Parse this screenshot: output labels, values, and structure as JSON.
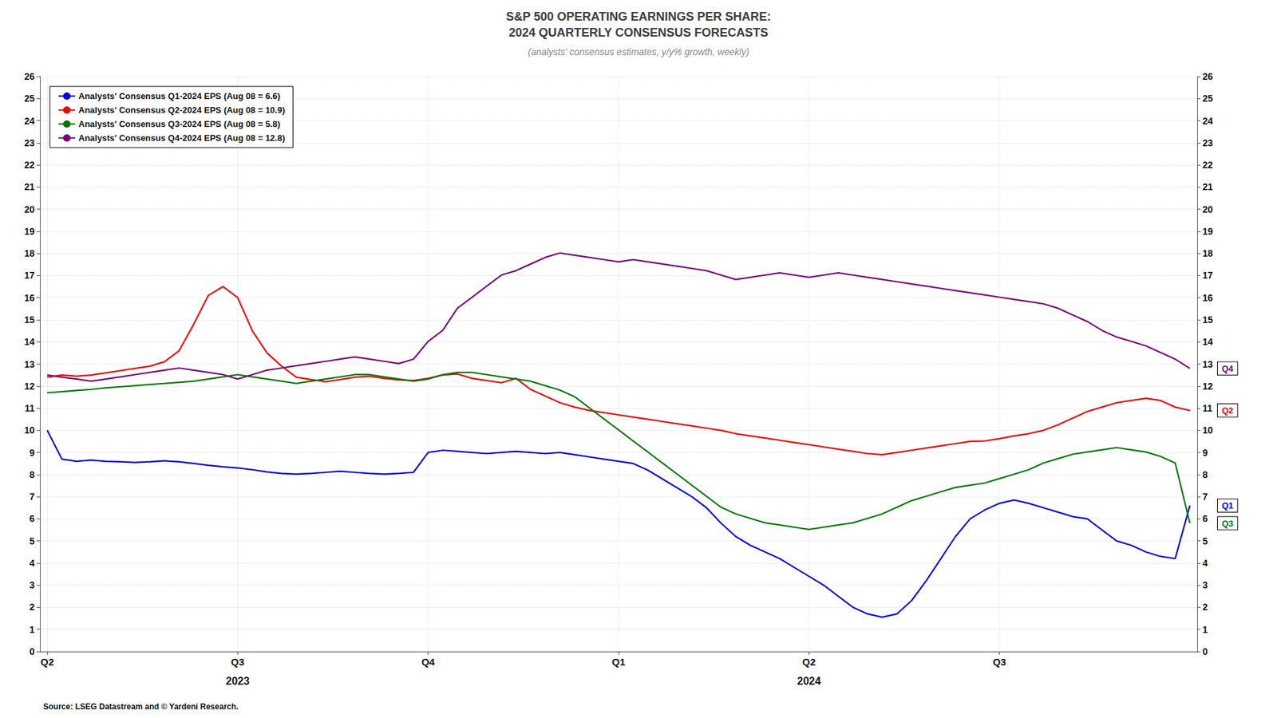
{
  "chart_data": {
    "type": "line",
    "title": "S&P 500 OPERATING EARNINGS PER SHARE:\n2024 QUARTERLY CONSENSUS FORECASTS",
    "subtitle": "(analysts' consensus estimates, y/y% growth, weekly)",
    "source": "Source: LSEG Datastream and © Yardeni Research.",
    "categories": [
      "Q2",
      null,
      null,
      null,
      null,
      null,
      null,
      null,
      null,
      null,
      null,
      null,
      null,
      "Q3",
      null,
      null,
      null,
      null,
      null,
      null,
      null,
      null,
      null,
      null,
      null,
      null,
      "Q4",
      null,
      null,
      null,
      null,
      null,
      null,
      null,
      null,
      null,
      null,
      null,
      null,
      "Q1",
      null,
      null,
      null,
      null,
      null,
      null,
      null,
      null,
      null,
      null,
      null,
      null,
      "Q2",
      null,
      null,
      null,
      null,
      null,
      null,
      null,
      null,
      null,
      null,
      null,
      null,
      "Q3",
      null,
      null,
      null,
      null,
      null,
      null,
      null,
      null,
      null,
      null,
      null,
      null,
      null
    ],
    "annotations": [
      {
        "text": "2023",
        "x": 13
      },
      {
        "text": "2024",
        "x": 52
      }
    ],
    "ylim": [
      0,
      26
    ],
    "yticks": [
      0,
      1,
      2,
      3,
      4,
      5,
      6,
      7,
      8,
      9,
      10,
      11,
      12,
      13,
      14,
      15,
      16,
      17,
      18,
      19,
      20,
      21,
      22,
      23,
      24,
      25,
      26
    ],
    "grid": true,
    "legend": "upper left",
    "series": [
      {
        "name": "Analysts' Consensus Q1-2024 EPS (Aug 08 = 6.6)",
        "color": "#0000dd",
        "end_label": "Q1",
        "values": [
          10.0,
          8.7,
          8.6,
          8.65,
          8.6,
          8.58,
          8.55,
          8.58,
          8.62,
          8.58,
          8.5,
          8.42,
          8.35,
          8.3,
          8.22,
          8.12,
          8.05,
          8.02,
          8.05,
          8.1,
          8.15,
          8.1,
          8.05,
          8.02,
          8.05,
          8.1,
          9.0,
          9.1,
          9.05,
          9.0,
          8.95,
          9.0,
          9.05,
          9.0,
          8.95,
          9.0,
          8.9,
          8.8,
          8.7,
          8.6,
          8.5,
          8.2,
          7.8,
          7.4,
          7.0,
          6.5,
          5.8,
          5.2,
          4.8,
          4.5,
          4.2,
          3.8,
          3.4,
          3.0,
          2.5,
          2.0,
          1.7,
          1.55,
          1.7,
          2.3,
          3.2,
          4.2,
          5.2,
          6.0,
          6.4,
          6.7,
          6.85,
          6.7,
          6.5,
          6.3,
          6.1,
          6.0,
          5.5,
          5.0,
          4.8,
          4.5,
          4.3,
          4.2,
          6.6
        ]
      },
      {
        "name": "Analysts' Consensus Q2-2024 EPS (Aug 08 = 10.9)",
        "color": "#ee0000",
        "end_label": "Q2",
        "values": [
          12.4,
          12.5,
          12.45,
          12.5,
          12.6,
          12.7,
          12.8,
          12.9,
          13.1,
          13.6,
          14.8,
          16.1,
          16.5,
          16.0,
          14.5,
          13.5,
          12.9,
          12.4,
          12.3,
          12.2,
          12.3,
          12.4,
          12.45,
          12.35,
          12.28,
          12.25,
          12.35,
          12.5,
          12.55,
          12.35,
          12.25,
          12.15,
          12.35,
          11.85,
          11.55,
          11.25,
          11.05,
          10.9,
          10.8,
          10.7,
          10.6,
          10.5,
          10.4,
          10.3,
          10.2,
          10.1,
          10.0,
          9.85,
          9.75,
          9.65,
          9.55,
          9.45,
          9.35,
          9.25,
          9.15,
          9.05,
          8.95,
          8.9,
          9.0,
          9.1,
          9.2,
          9.3,
          9.4,
          9.5,
          9.52,
          9.62,
          9.75,
          9.85,
          10.0,
          10.25,
          10.55,
          10.85,
          11.05,
          11.25,
          11.35,
          11.45,
          11.35,
          11.05,
          10.9
        ]
      },
      {
        "name": "Analysts' Consensus Q3-2024 EPS (Aug 08 = 5.8)",
        "color": "#007700",
        "end_label": "Q3",
        "values": [
          11.7,
          11.75,
          11.8,
          11.85,
          11.92,
          11.97,
          12.02,
          12.07,
          12.12,
          12.17,
          12.22,
          12.32,
          12.42,
          12.52,
          12.42,
          12.32,
          12.22,
          12.12,
          12.22,
          12.32,
          12.42,
          12.52,
          12.52,
          12.42,
          12.32,
          12.22,
          12.32,
          12.52,
          12.62,
          12.62,
          12.52,
          12.42,
          12.32,
          12.22,
          12.02,
          11.82,
          11.52,
          11.02,
          10.52,
          10.02,
          9.52,
          9.02,
          8.52,
          8.02,
          7.52,
          7.02,
          6.52,
          6.22,
          6.02,
          5.82,
          5.72,
          5.62,
          5.52,
          5.62,
          5.72,
          5.82,
          6.02,
          6.22,
          6.52,
          6.82,
          7.02,
          7.22,
          7.42,
          7.52,
          7.62,
          7.82,
          8.02,
          8.22,
          8.52,
          8.72,
          8.92,
          9.02,
          9.12,
          9.22,
          9.12,
          9.02,
          8.82,
          8.52,
          5.8
        ]
      },
      {
        "name": "Analysts' Consensus Q4-2024 EPS (Aug 08 = 12.8)",
        "color": "#770077",
        "end_label": "Q4",
        "values": [
          12.5,
          12.4,
          12.32,
          12.22,
          12.32,
          12.42,
          12.52,
          12.62,
          12.72,
          12.82,
          12.72,
          12.62,
          12.52,
          12.32,
          12.52,
          12.72,
          12.82,
          12.92,
          13.02,
          13.12,
          13.22,
          13.32,
          13.22,
          13.12,
          13.02,
          13.22,
          14.02,
          14.52,
          15.52,
          16.02,
          16.52,
          17.02,
          17.22,
          17.52,
          17.82,
          18.02,
          17.92,
          17.82,
          17.72,
          17.62,
          17.72,
          17.62,
          17.52,
          17.42,
          17.32,
          17.22,
          17.02,
          16.82,
          16.92,
          17.02,
          17.12,
          17.02,
          16.92,
          17.02,
          17.12,
          17.02,
          16.92,
          16.82,
          16.72,
          16.62,
          16.52,
          16.42,
          16.32,
          16.22,
          16.12,
          16.02,
          15.92,
          15.82,
          15.72,
          15.52,
          15.22,
          14.92,
          14.52,
          14.22,
          14.02,
          13.82,
          13.52,
          13.22,
          12.8
        ]
      }
    ]
  }
}
